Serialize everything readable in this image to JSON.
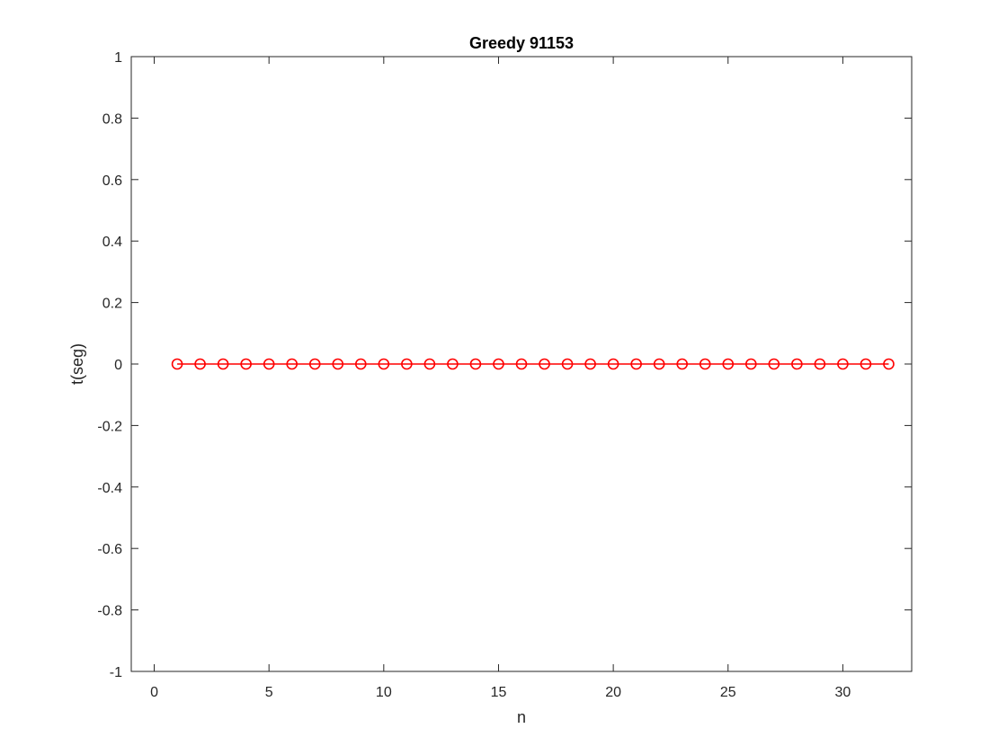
{
  "chart_data": {
    "type": "line",
    "title": "Greedy 91153",
    "xlabel": "n",
    "ylabel": "t(seg)",
    "xlim": [
      -1,
      33
    ],
    "ylim": [
      -1,
      1
    ],
    "xticks": [
      0,
      5,
      10,
      15,
      20,
      25,
      30
    ],
    "yticks": [
      -1,
      -0.8,
      -0.6,
      -0.4,
      -0.2,
      0,
      0.2,
      0.4,
      0.6,
      0.8,
      1
    ],
    "xtick_labels": [
      "0",
      "5",
      "10",
      "15",
      "20",
      "25",
      "30"
    ],
    "ytick_labels": [
      "-1",
      "-0.8",
      "-0.6",
      "-0.4",
      "-0.2",
      "0",
      "0.2",
      "0.4",
      "0.6",
      "0.8",
      "1"
    ],
    "grid": false,
    "series": [
      {
        "color": "#ff0000",
        "marker": "circle-open",
        "x": [
          1,
          2,
          3,
          4,
          5,
          6,
          7,
          8,
          9,
          10,
          11,
          12,
          13,
          14,
          15,
          16,
          17,
          18,
          19,
          20,
          21,
          22,
          23,
          24,
          25,
          26,
          27,
          28,
          29,
          30,
          31,
          32
        ],
        "y": [
          0,
          0,
          0,
          0,
          0,
          0,
          0,
          0,
          0,
          0,
          0,
          0,
          0,
          0,
          0,
          0,
          0,
          0,
          0,
          0,
          0,
          0,
          0,
          0,
          0,
          0,
          0,
          0,
          0,
          0,
          0,
          0
        ]
      }
    ]
  }
}
